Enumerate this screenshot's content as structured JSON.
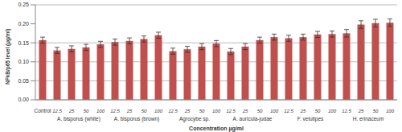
{
  "chart_data": {
    "type": "bar",
    "x_label": "Concentration µg/ml",
    "y_label": "NFkB/p65 level (µg/ml)",
    "categories": [
      "Control",
      "12.5",
      "25",
      "50",
      "100",
      "12.5",
      "25",
      "50",
      "100",
      "12.5",
      "25",
      "50",
      "100",
      "12.5",
      "25",
      "50",
      "100",
      "12.5",
      "25",
      "50",
      "100",
      "12.5",
      "25",
      "50",
      "100"
    ],
    "groups": [
      "A. bisporus (white)",
      "A. bisporus (brown)",
      "Agrocybe sp.",
      "A. auricula-judae",
      "F. velutipes",
      "H. erinaceum"
    ],
    "values": [
      0.157,
      0.13,
      0.134,
      0.138,
      0.146,
      0.152,
      0.155,
      0.16,
      0.17,
      0.128,
      0.133,
      0.14,
      0.148,
      0.127,
      0.14,
      0.157,
      0.165,
      0.162,
      0.165,
      0.172,
      0.173,
      0.175,
      0.198,
      0.202,
      0.203
    ],
    "errors": [
      0.008,
      0.008,
      0.008,
      0.008,
      0.008,
      0.008,
      0.008,
      0.008,
      0.008,
      0.008,
      0.008,
      0.008,
      0.008,
      0.008,
      0.008,
      0.008,
      0.008,
      0.008,
      0.008,
      0.008,
      0.008,
      0.01,
      0.01,
      0.01,
      0.01
    ],
    "color": "#c0504d",
    "ylim": [
      0,
      0.25
    ],
    "yticks": [
      {
        "value": 0,
        "label": "0.00"
      },
      {
        "value": 0.05,
        "label": "0.05"
      },
      {
        "value": 0.1,
        "label": "0.10"
      },
      {
        "value": 0.15,
        "label": "0.15"
      },
      {
        "value": 0.2,
        "label": "0.20"
      },
      {
        "value": 0.25,
        "label": "0.25"
      }
    ],
    "grid": true
  }
}
